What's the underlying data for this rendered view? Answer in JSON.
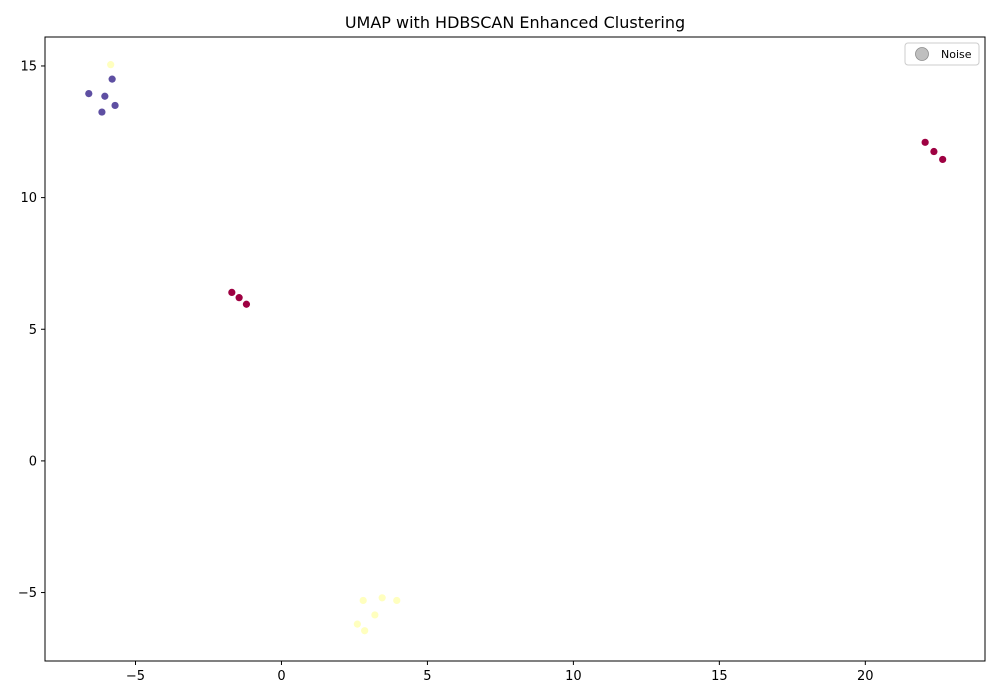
{
  "chart_data": {
    "type": "scatter",
    "title": "UMAP with HDBSCAN Enhanced Clustering",
    "xlabel": "",
    "ylabel": "",
    "xlim": [
      -8.1,
      24.1
    ],
    "ylim": [
      -7.6,
      16.1
    ],
    "xticks": [
      -5,
      0,
      5,
      10,
      15,
      20
    ],
    "xtick_labels": [
      "−5",
      "0",
      "5",
      "10",
      "15",
      "20"
    ],
    "yticks": [
      -5,
      0,
      5,
      10,
      15
    ],
    "ytick_labels": [
      "−5",
      "0",
      "5",
      "10",
      "15"
    ],
    "grid": false,
    "legend": {
      "placement": "top-right",
      "entries": [
        {
          "label": "Noise",
          "color": "#bfbfbf"
        }
      ]
    },
    "series": [
      {
        "color": "#5e4fa2",
        "points": [
          [
            -6.6,
            13.95
          ],
          [
            -6.05,
            13.85
          ],
          [
            -5.8,
            14.5
          ],
          [
            -5.7,
            13.5
          ],
          [
            -6.15,
            13.25
          ]
        ]
      },
      {
        "color": "#9e0142",
        "points": [
          [
            -1.7,
            6.4
          ],
          [
            -1.45,
            6.2
          ],
          [
            -1.2,
            5.95
          ],
          [
            22.05,
            12.1
          ],
          [
            22.35,
            11.75
          ],
          [
            22.65,
            11.45
          ]
        ]
      },
      {
        "color": "#ffffbf",
        "points": [
          [
            -5.85,
            15.05
          ],
          [
            2.8,
            -5.3
          ],
          [
            3.45,
            -5.2
          ],
          [
            3.95,
            -5.3
          ],
          [
            3.2,
            -5.85
          ],
          [
            2.6,
            -6.2
          ],
          [
            2.85,
            -6.45
          ]
        ]
      }
    ]
  }
}
